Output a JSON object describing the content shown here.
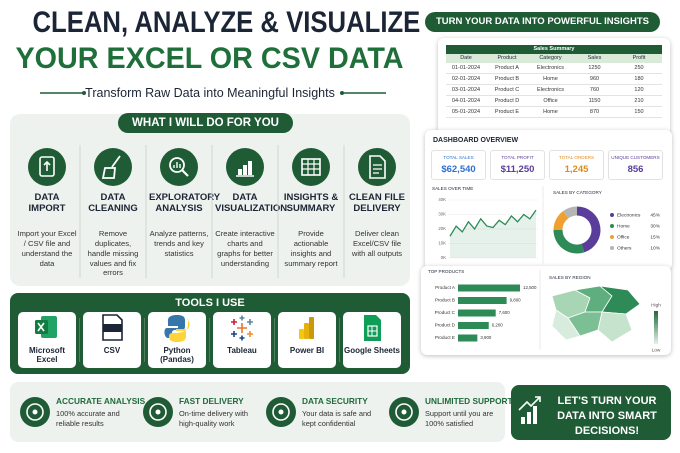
{
  "header": {
    "title_line1": "CLEAN, ANALYZE & VISUALIZE",
    "title_line2": "YOUR EXCEL OR CSV DATA",
    "subtitle": "Transform Raw Data into Meaningful Insights"
  },
  "services": {
    "heading": "WHAT I WILL DO FOR YOU",
    "items": [
      {
        "title": "DATA IMPORT",
        "description": "Import your Excel / CSV file and understand the data"
      },
      {
        "title": "DATA CLEANING",
        "description": "Remove duplicates, handle missing values and fix errors"
      },
      {
        "title": "EXPLORATORY ANALYSIS",
        "description": "Analyze patterns, trends and key statistics"
      },
      {
        "title": "DATA VISUALIZATION",
        "description": "Create interactive charts and graphs for better understanding"
      },
      {
        "title": "INSIGHTS & SUMMARY",
        "description": "Provide actionable insights and summary report"
      },
      {
        "title": "CLEAN FILE DELIVERY",
        "description": "Deliver clean Excel/CSV file with all outputs"
      }
    ]
  },
  "tools": {
    "heading": "TOOLS I USE",
    "items": [
      "Microsoft Excel",
      "CSV",
      "Python (Pandas)",
      "Tableau",
      "Power BI",
      "Google Sheets"
    ]
  },
  "features": [
    {
      "title": "ACCURATE ANALYSIS",
      "description": "100% accurate and reliable results"
    },
    {
      "title": "FAST DELIVERY",
      "description": "On-time delivery with high-quality work"
    },
    {
      "title": "DATA SECURITY",
      "description": "Your data is safe and kept confidential"
    },
    {
      "title": "UNLIMITED SUPPORT",
      "description": "Support until you are 100% satisfied"
    }
  ],
  "cta": "LET'S TURN YOUR DATA INTO SMART DECISIONS!",
  "preview": {
    "banner": "TURN YOUR DATA INTO POWERFUL INSIGHTS",
    "sales_table": {
      "title": "Sales Summary",
      "columns": [
        "Date",
        "Product",
        "Category",
        "Sales",
        "Profit"
      ],
      "rows": [
        [
          "01-01-2024",
          "Product A",
          "Electronics",
          1250,
          250
        ],
        [
          "02-01-2024",
          "Product B",
          "Home",
          960,
          180
        ],
        [
          "03-01-2024",
          "Product C",
          "Electronics",
          760,
          120
        ],
        [
          "04-01-2024",
          "Product D",
          "Office",
          1150,
          210
        ],
        [
          "05-01-2024",
          "Product E",
          "Home",
          870,
          150
        ]
      ]
    },
    "dashboard": {
      "title": "DASHBOARD OVERVIEW",
      "kpis": [
        {
          "label": "TOTAL SALES",
          "value": "$62,540",
          "color": "#2f6fd0"
        },
        {
          "label": "TOTAL PROFIT",
          "value": "$11,250",
          "color": "#5a3d9a"
        },
        {
          "label": "TOTAL ORDERS",
          "value": "1,245",
          "color": "#e08a1e"
        },
        {
          "label": "UNIQUE CUSTOMERS",
          "value": "856",
          "color": "#5a3d9a"
        }
      ],
      "sales_over_time": {
        "type": "line",
        "title": "SALES OVER TIME",
        "color": "#2e8b57",
        "values": [
          15,
          22,
          18,
          25,
          20,
          27,
          22,
          21,
          26,
          23,
          29,
          25,
          30,
          27,
          33
        ],
        "ylim": [
          0,
          40
        ],
        "yticks": [
          {
            "value": 0,
            "label": "0K"
          },
          {
            "value": 10,
            "label": "10K"
          },
          {
            "value": 20,
            "label": "20K"
          },
          {
            "value": 30,
            "label": "30K"
          },
          {
            "value": 40,
            "label": "40K"
          }
        ]
      },
      "sales_by_category": {
        "type": "pie",
        "title": "SALES BY CATEGORY",
        "categories": [
          "Electronics",
          "Home",
          "Office",
          "Others"
        ],
        "values": [
          45,
          30,
          15,
          10
        ],
        "value_labels": [
          "45%",
          "30%",
          "15%",
          "10%"
        ],
        "colors": [
          "#5a3d9a",
          "#2e8b57",
          "#f0a030",
          "#b5b5b5"
        ]
      }
    },
    "top_products": {
      "type": "bar",
      "title": "TOP PRODUCTS",
      "categories": [
        "Product A",
        "Product B",
        "Product C",
        "Product D",
        "Product E"
      ],
      "values": [
        12500,
        9800,
        7600,
        6200,
        3900
      ],
      "value_labels": [
        "12,500",
        "9,800",
        "7,600",
        "6,200",
        "3,900"
      ],
      "color": "#2e8b57"
    },
    "sales_by_region": {
      "title": "SALES BY REGION",
      "legend_high": "High",
      "legend_low": "Low"
    }
  }
}
